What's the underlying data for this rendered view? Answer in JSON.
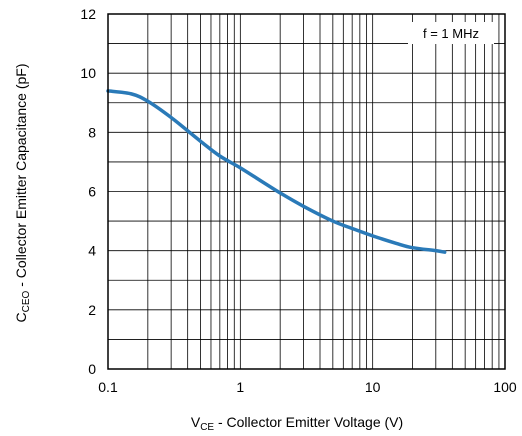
{
  "chart_data": {
    "type": "line",
    "xscale": "log",
    "xlim": [
      0.1,
      100
    ],
    "ylim": [
      0,
      12
    ],
    "x_ticks": [
      "0.1",
      "1",
      "10",
      "100"
    ],
    "y_ticks": [
      "0",
      "2",
      "4",
      "6",
      "8",
      "10",
      "12"
    ],
    "grid": true,
    "xlabel": {
      "main": "V",
      "sub": "CE",
      "rest": " - Collector Emitter Voltage (V)"
    },
    "ylabel": {
      "main": "C",
      "sub": "CEO",
      "rest": " - Collector Emitter Capacitance (pF)"
    },
    "annotation": "f = 1 MHz",
    "series": [
      {
        "color": "#2a7ab8",
        "x": [
          0.1,
          0.15,
          0.2,
          0.3,
          0.5,
          0.7,
          1,
          1.5,
          2,
          3,
          5,
          7,
          10,
          15,
          20,
          30,
          35
        ],
        "y": [
          9.4,
          9.3,
          9.05,
          8.5,
          7.7,
          7.2,
          6.8,
          6.3,
          5.95,
          5.5,
          5.0,
          4.75,
          4.5,
          4.25,
          4.1,
          4.0,
          3.95
        ]
      }
    ]
  }
}
